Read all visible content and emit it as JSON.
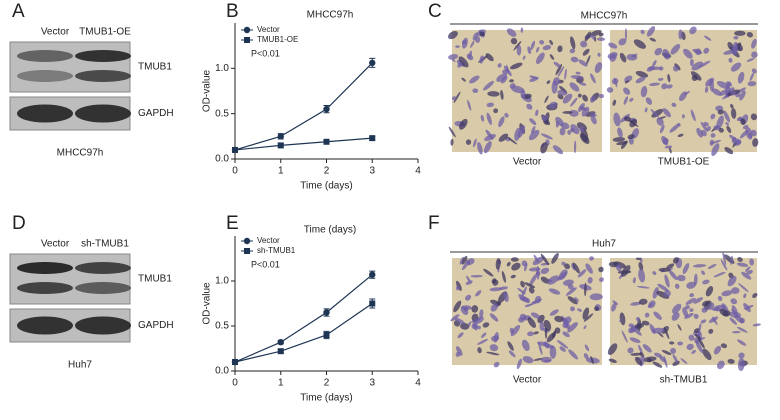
{
  "panel_labels": [
    "A",
    "B",
    "C",
    "D",
    "E",
    "F"
  ],
  "blots": [
    {
      "lanes": [
        "Vector",
        "TMUB1-OE"
      ],
      "bands": [
        "TMUB1",
        "GAPDH"
      ],
      "cell_line": "MHCC97h"
    },
    {
      "lanes": [
        "Vector",
        "sh-TMUB1"
      ],
      "bands": [
        "TMUB1",
        "GAPDH"
      ],
      "cell_line": "Huh7"
    }
  ],
  "micrographs": [
    {
      "title": "MHCC97h",
      "labels": [
        "Vector",
        "TMUB1-OE"
      ]
    },
    {
      "title": "Huh7",
      "labels": [
        "Vector",
        "sh-TMUB1"
      ]
    }
  ],
  "chart_data": [
    {
      "type": "line",
      "title": "MHCC97h",
      "x_label": "Time (days)",
      "y_label": "OD-value",
      "annotation": "P<0.01",
      "x": [
        0,
        1,
        2,
        3
      ],
      "xlim": [
        0,
        4
      ],
      "xticks": [
        0,
        1,
        2,
        3,
        4
      ],
      "ylim": [
        0,
        1.5
      ],
      "yticks": [
        {
          "value": 0,
          "label": "0.0"
        },
        {
          "value": 0.5,
          "label": "0.5"
        },
        {
          "value": 1,
          "label": "1.0"
        }
      ],
      "series": [
        {
          "name": "Vector",
          "marker": "circle",
          "color": "#1f3554",
          "values": [
            0.1,
            0.25,
            0.55,
            1.06
          ],
          "errors": [
            0.01,
            0.03,
            0.04,
            0.05
          ]
        },
        {
          "name": "TMUB1-OE",
          "marker": "square",
          "color": "#1f3554",
          "values": [
            0.1,
            0.15,
            0.19,
            0.23
          ],
          "errors": [
            0.01,
            0.02,
            0.02,
            0.02
          ]
        }
      ]
    },
    {
      "type": "line",
      "title": "Time (days)",
      "x_label": "Time (days)",
      "y_label": "OD-value",
      "annotation": "P<0.01",
      "x": [
        0,
        1,
        2,
        3
      ],
      "xlim": [
        0,
        4
      ],
      "xticks": [
        0,
        1,
        2,
        3,
        4
      ],
      "ylim": [
        0,
        1.5
      ],
      "yticks": [
        {
          "value": 0,
          "label": "0.0"
        },
        {
          "value": 0.5,
          "label": "0.5"
        },
        {
          "value": 1,
          "label": "1.0"
        }
      ],
      "series": [
        {
          "name": "Vector",
          "marker": "circle",
          "color": "#1f3554",
          "values": [
            0.1,
            0.32,
            0.65,
            1.07
          ],
          "errors": [
            0.01,
            0.02,
            0.04,
            0.04
          ]
        },
        {
          "name": "sh-TMUB1",
          "marker": "square",
          "color": "#1f3554",
          "values": [
            0.1,
            0.22,
            0.4,
            0.75
          ],
          "errors": [
            0.01,
            0.02,
            0.04,
            0.05
          ]
        }
      ]
    }
  ]
}
